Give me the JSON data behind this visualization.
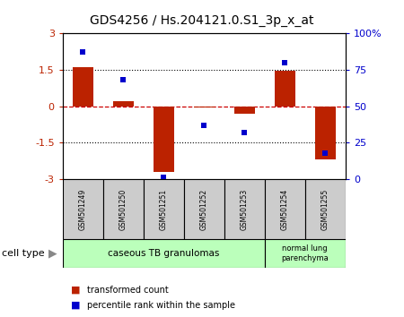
{
  "title": "GDS4256 / Hs.204121.0.S1_3p_x_at",
  "samples": [
    "GSM501249",
    "GSM501250",
    "GSM501251",
    "GSM501252",
    "GSM501253",
    "GSM501254",
    "GSM501255"
  ],
  "transformed_count": [
    1.6,
    0.2,
    -2.7,
    -0.05,
    -0.3,
    1.45,
    -2.2
  ],
  "percentile_rank": [
    87,
    68,
    1,
    37,
    32,
    80,
    18
  ],
  "ylim_left": [
    -3,
    3
  ],
  "ylim_right": [
    0,
    100
  ],
  "yticks_left": [
    -3,
    -1.5,
    0,
    1.5,
    3
  ],
  "yticks_right": [
    0,
    25,
    50,
    75,
    100
  ],
  "bar_color": "#bb2200",
  "dot_color": "#0000cc",
  "zero_line_color": "#cc0000",
  "dotted_line_color": "#000000",
  "bg_color": "#ffffff",
  "sample_box_color": "#cccccc",
  "group1_color": "#bbffbb",
  "group2_color": "#bbffbb",
  "group1_label": "caseous TB granulomas",
  "group2_label": "normal lung\nparenchyma",
  "group1_count": 5,
  "group2_count": 2,
  "legend_tc_label": "transformed count",
  "legend_pr_label": "percentile rank within the sample",
  "cell_type_label": "cell type"
}
